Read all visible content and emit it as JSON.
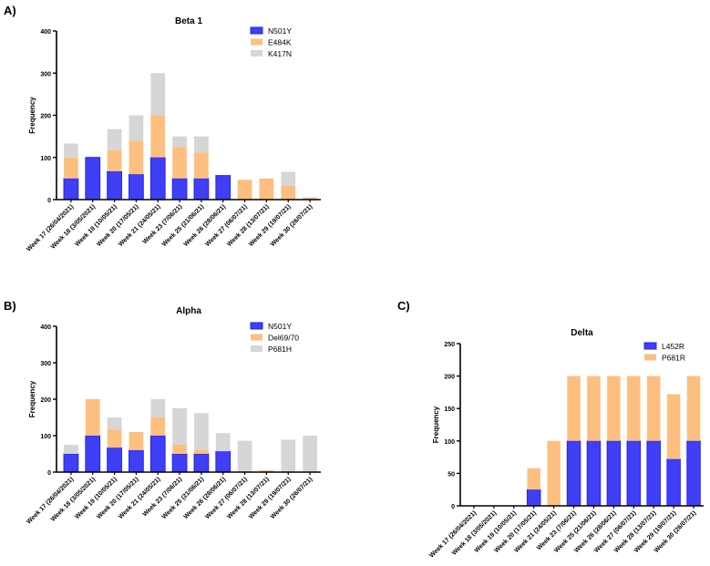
{
  "panels": [
    "A)",
    "B)",
    "C)"
  ],
  "chart_data": [
    {
      "type": "bar",
      "stacked": true,
      "title": "Beta 1",
      "ylabel": "Frequency",
      "xlabel": "",
      "ylim": [
        0,
        400
      ],
      "yticks": [
        0,
        100,
        200,
        300,
        400
      ],
      "legend_position": "top-right",
      "categories": [
        "Week 17 (26/04/2021)",
        "Week 18 (3/05/2021)",
        "Week 19 (10/05/21)",
        "Week 20 (17/05/21)",
        "Week 21 (24/05/21)",
        "Week 23 (7/06/21)",
        "Week 25 (21/06/21)",
        "Week 26 (28/06/21)",
        "Week 27 (06/07/21)",
        "Week 28 (13/07/21)",
        "Week 29 (19/07/21)",
        "Week 30 (26/07/21)"
      ],
      "series": [
        {
          "name": "N501Y",
          "color": "#3f3ff5",
          "values": [
            50,
            100,
            67,
            60,
            100,
            50,
            50,
            57,
            0,
            0,
            0,
            0
          ]
        },
        {
          "name": "E484K",
          "color": "#fdbf80",
          "values": [
            50,
            0,
            50,
            80,
            100,
            75,
            62,
            0,
            47,
            50,
            33,
            5
          ]
        },
        {
          "name": "K417N",
          "color": "#d6d6d6",
          "values": [
            33,
            0,
            50,
            60,
            100,
            25,
            38,
            0,
            0,
            0,
            33,
            0
          ]
        }
      ]
    },
    {
      "type": "bar",
      "stacked": true,
      "title": "Alpha",
      "ylabel": "Frequency",
      "xlabel": "",
      "ylim": [
        0,
        400
      ],
      "yticks": [
        0,
        100,
        200,
        300,
        400
      ],
      "legend_position": "top-right",
      "categories": [
        "Week 17 (26/04/2021)",
        "Week 18 (3/05/2021)",
        "Week 19 (10/05/21)",
        "Week 20 (17/05/21)",
        "Week 21 (24/05/21)",
        "Week 23 (7/06/21)",
        "Week 25 (21/06/21)",
        "Week 26 (28/06/21)",
        "Week 27 (06/07/21)",
        "Week 28 (13/07/21)",
        "Week 29 (19/07/21)",
        "Week 30 (26/07/21)"
      ],
      "series": [
        {
          "name": "N501Y",
          "color": "#3f3ff5",
          "values": [
            50,
            100,
            67,
            60,
            100,
            50,
            50,
            57,
            0,
            0,
            0,
            0
          ]
        },
        {
          "name": "Del69/70",
          "color": "#fdbf80",
          "values": [
            0,
            100,
            50,
            50,
            50,
            25,
            12,
            0,
            3,
            5,
            0,
            0
          ]
        },
        {
          "name": "P681H",
          "color": "#d6d6d6",
          "values": [
            25,
            0,
            33,
            0,
            50,
            100,
            100,
            50,
            83,
            0,
            89,
            100
          ]
        }
      ]
    },
    {
      "type": "bar",
      "stacked": true,
      "title": "Delta",
      "ylabel": "Frequency",
      "xlabel": "",
      "ylim": [
        0,
        250
      ],
      "yticks": [
        0,
        50,
        100,
        150,
        200,
        250
      ],
      "legend_position": "top-right",
      "categories": [
        "Week 17 (26/04/2021)",
        "Week 18 (3/05/2021)",
        "Week 19 (10/05/21)",
        "Week 20 (17/05/21)",
        "Week 21 (24/05/21)",
        "Week 23 (7/06/21)",
        "Week 25 (21/06/21)",
        "Week 26 (28/06/21)",
        "Week 27 (06/07/21)",
        "Week 28 (13/07/21)",
        "Week 29 (19/07/21)",
        "Week 30 (26/07/21)"
      ],
      "series": [
        {
          "name": "L452R",
          "color": "#3f3ff5",
          "values": [
            0,
            0,
            0,
            25,
            0,
            100,
            100,
            100,
            100,
            100,
            72,
            100
          ]
        },
        {
          "name": "P681R",
          "color": "#fdbf80",
          "values": [
            0,
            0,
            0,
            33,
            100,
            100,
            100,
            100,
            100,
            100,
            100,
            100
          ]
        }
      ]
    }
  ]
}
